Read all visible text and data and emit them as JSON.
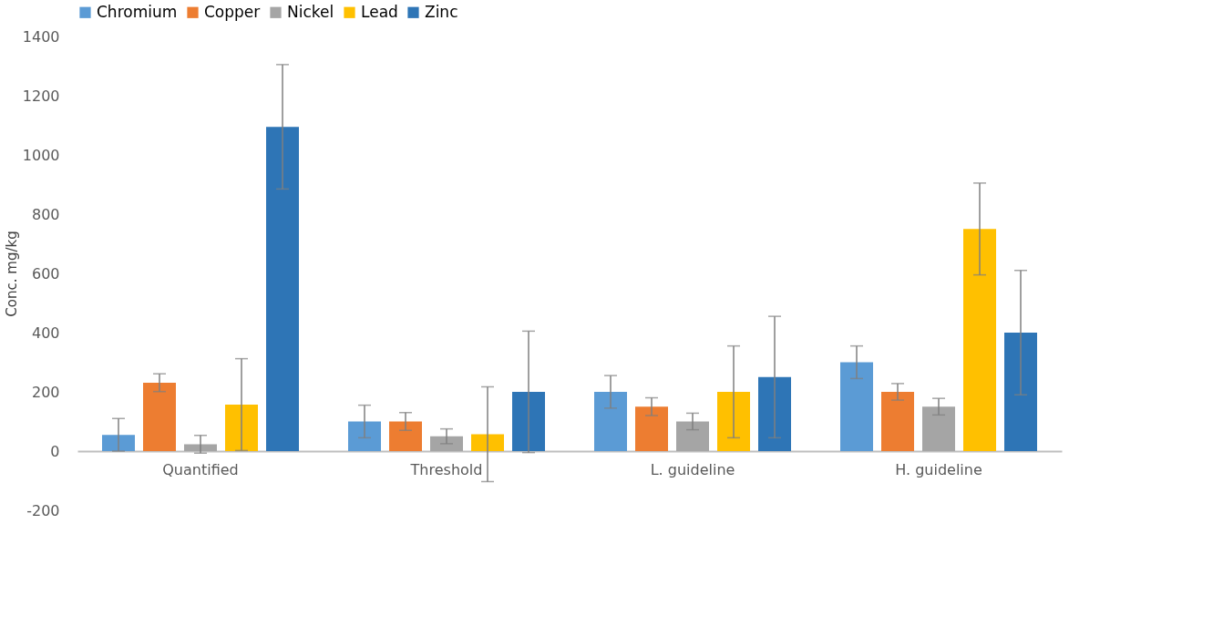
{
  "chart_data": {
    "type": "bar",
    "ylabel": "Conc. mg/kg",
    "categories": [
      "Quantified",
      "Threshold",
      "L. guideline",
      "H. guideline"
    ],
    "series": [
      {
        "name": "Chromium",
        "color": "#5b9bd5",
        "values": [
          55,
          100,
          200,
          300
        ],
        "errors": [
          55,
          55,
          55,
          55
        ]
      },
      {
        "name": "Copper",
        "color": "#ed7d31",
        "values": [
          231,
          100,
          150,
          200
        ],
        "errors": [
          30,
          30,
          30,
          28
        ]
      },
      {
        "name": "Nickel",
        "color": "#a5a5a5",
        "values": [
          23,
          50,
          100,
          150
        ],
        "errors": [
          30,
          25,
          28,
          28
        ]
      },
      {
        "name": "Lead",
        "color": "#ffc000",
        "values": [
          157,
          57,
          200,
          750
        ],
        "errors": [
          155,
          160,
          155,
          155
        ]
      },
      {
        "name": "Zinc",
        "color": "#2e75b6",
        "values": [
          1095,
          200,
          250,
          400
        ],
        "errors": [
          210,
          205,
          205,
          210
        ]
      }
    ],
    "ylim": [
      -200,
      1400
    ],
    "yticks": [
      -200,
      0,
      200,
      400,
      600,
      800,
      1000,
      1200,
      1400
    ],
    "grid": false,
    "legend": "top"
  }
}
